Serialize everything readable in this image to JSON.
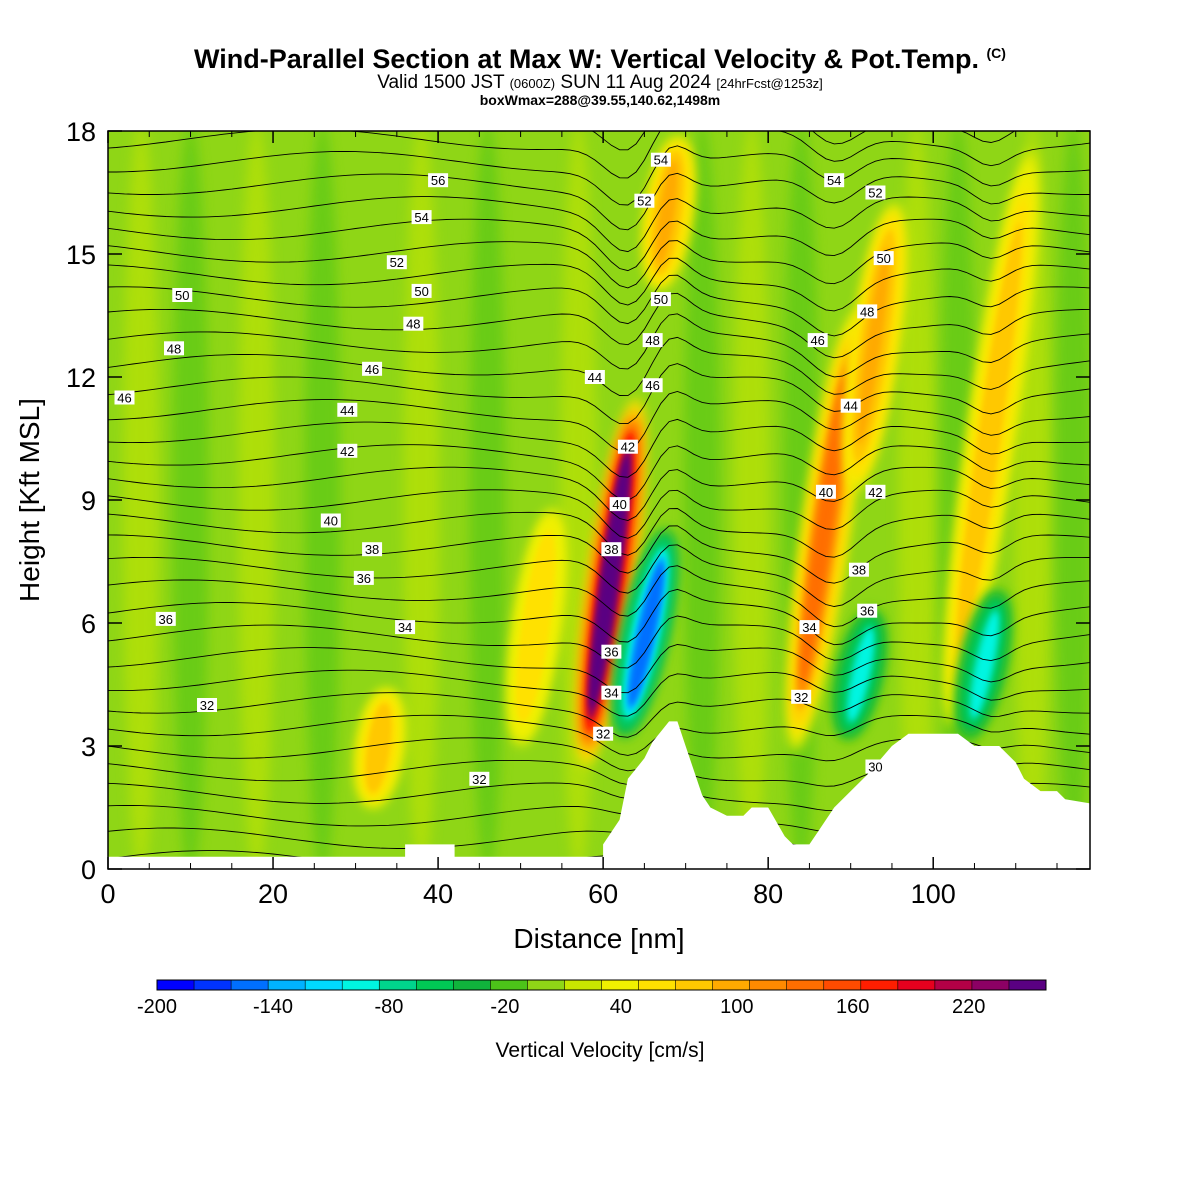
{
  "header": {
    "title_main": "Wind-Parallel Section at Max W: Vertical Velocity & Pot.Temp.",
    "title_mark": "(C)",
    "valid_a": "Valid 1500 JST",
    "valid_b": "(0600Z)",
    "valid_c": "SUN 11 Aug 2024",
    "valid_d": "[24hrFcst@1253z]",
    "boxwmax": "boxWmax=288@39.55,140.62,1498m"
  },
  "chart_data": {
    "type": "heatmap",
    "xlabel": "Distance [nm]",
    "ylabel": "Height [Kft MSL]",
    "xlim": [
      0,
      119
    ],
    "ylim": [
      0,
      18
    ],
    "x_ticks": [
      0,
      20,
      40,
      60,
      80,
      100
    ],
    "y_ticks": [
      0,
      3,
      6,
      9,
      12,
      15,
      18
    ],
    "colorbar": {
      "label": "Vertical Velocity [cm/s]",
      "tick_labels": [
        "-200",
        "-140",
        "-80",
        "-20",
        "40",
        "100",
        "160",
        "220"
      ],
      "tick_values": [
        -200,
        -140,
        -80,
        -20,
        40,
        100,
        160,
        220
      ],
      "range": [
        -200,
        260
      ],
      "colors": [
        "#0000ff",
        "#0033ff",
        "#0070ff",
        "#00b2ff",
        "#00d9ff",
        "#00f5e1",
        "#00d48c",
        "#00c855",
        "#10b43c",
        "#4cc419",
        "#8fd616",
        "#c8e600",
        "#f0f000",
        "#ffe100",
        "#ffc800",
        "#ffaa00",
        "#ff8a00",
        "#ff6e00",
        "#ff4b00",
        "#ff1e00",
        "#e6001e",
        "#b40046",
        "#8c0064",
        "#5a0082"
      ]
    },
    "updraft_bands": [
      {
        "x_center": 61,
        "z_bottom": 2.2,
        "z_top": 11.8,
        "peak_w": 260
      },
      {
        "x_center": 52,
        "z_bottom": 2.8,
        "z_top": 9.0,
        "peak_w": 60
      },
      {
        "x_center": 33,
        "z_bottom": 1.4,
        "z_top": 4.5,
        "peak_w": 80
      },
      {
        "x_center": 87,
        "z_bottom": 2.5,
        "z_top": 14.0,
        "peak_w": 140
      },
      {
        "x_center": 93,
        "z_bottom": 9.0,
        "z_top": 16.5,
        "peak_w": 90
      },
      {
        "x_center": 107,
        "z_bottom": 3.0,
        "z_top": 18.0,
        "peak_w": 80
      },
      {
        "x_center": 68,
        "z_bottom": 14.0,
        "z_top": 18.0,
        "peak_w": 90
      }
    ],
    "downdraft_bands": [
      {
        "x_center": 65,
        "z_bottom": 3.0,
        "z_top": 8.5,
        "peak_w": -150
      },
      {
        "x_center": 91,
        "z_bottom": 3.0,
        "z_top": 6.5,
        "peak_w": -90
      },
      {
        "x_center": 106,
        "z_bottom": 3.0,
        "z_top": 7.0,
        "peak_w": -90
      }
    ],
    "terrain_kft": [
      [
        0,
        0.3
      ],
      [
        36,
        0.3
      ],
      [
        36,
        0.6
      ],
      [
        42,
        0.6
      ],
      [
        42,
        0.3
      ],
      [
        60,
        0.3
      ],
      [
        60,
        0.6
      ],
      [
        62,
        1.2
      ],
      [
        63,
        2.2
      ],
      [
        65,
        2.7
      ],
      [
        66,
        3.1
      ],
      [
        68,
        3.6
      ],
      [
        69,
        3.6
      ],
      [
        70,
        3.0
      ],
      [
        71,
        2.4
      ],
      [
        72,
        1.8
      ],
      [
        73,
        1.5
      ],
      [
        75,
        1.3
      ],
      [
        77,
        1.3
      ],
      [
        78,
        1.5
      ],
      [
        80,
        1.5
      ],
      [
        82,
        0.8
      ],
      [
        83,
        0.6
      ],
      [
        85,
        0.6
      ],
      [
        86,
        0.9
      ],
      [
        88,
        1.5
      ],
      [
        90,
        1.9
      ],
      [
        92,
        2.3
      ],
      [
        95,
        3.0
      ],
      [
        97,
        3.3
      ],
      [
        103,
        3.3
      ],
      [
        105,
        3.0
      ],
      [
        108,
        3.0
      ],
      [
        110,
        2.6
      ],
      [
        111,
        2.2
      ],
      [
        113,
        1.9
      ],
      [
        115,
        1.9
      ],
      [
        116,
        1.7
      ],
      [
        119,
        1.6
      ]
    ],
    "theta_contour_labels": [
      {
        "text": "56",
        "x": 40,
        "z": 16.8
      },
      {
        "text": "54",
        "x": 38,
        "z": 15.9
      },
      {
        "text": "52",
        "x": 35,
        "z": 14.8
      },
      {
        "text": "50",
        "x": 9,
        "z": 14.0
      },
      {
        "text": "50",
        "x": 38,
        "z": 14.1
      },
      {
        "text": "48",
        "x": 37,
        "z": 13.3
      },
      {
        "text": "48",
        "x": 8,
        "z": 12.7
      },
      {
        "text": "46",
        "x": 32,
        "z": 12.2
      },
      {
        "text": "46",
        "x": 2,
        "z": 11.5
      },
      {
        "text": "44",
        "x": 29,
        "z": 11.2
      },
      {
        "text": "42",
        "x": 29,
        "z": 10.2
      },
      {
        "text": "40",
        "x": 27,
        "z": 8.5
      },
      {
        "text": "38",
        "x": 32,
        "z": 7.8
      },
      {
        "text": "36",
        "x": 31,
        "z": 7.1
      },
      {
        "text": "36",
        "x": 7,
        "z": 6.1
      },
      {
        "text": "34",
        "x": 36,
        "z": 5.9
      },
      {
        "text": "32",
        "x": 12,
        "z": 4.0
      },
      {
        "text": "32",
        "x": 45,
        "z": 2.2
      },
      {
        "text": "54",
        "x": 67,
        "z": 17.3
      },
      {
        "text": "52",
        "x": 65,
        "z": 16.3
      },
      {
        "text": "50",
        "x": 67,
        "z": 13.9
      },
      {
        "text": "48",
        "x": 66,
        "z": 12.9
      },
      {
        "text": "46",
        "x": 66,
        "z": 11.8
      },
      {
        "text": "44",
        "x": 59,
        "z": 12.0
      },
      {
        "text": "42",
        "x": 63,
        "z": 10.3
      },
      {
        "text": "40",
        "x": 62,
        "z": 8.9
      },
      {
        "text": "38",
        "x": 61,
        "z": 7.8
      },
      {
        "text": "36",
        "x": 61,
        "z": 5.3
      },
      {
        "text": "34",
        "x": 61,
        "z": 4.3
      },
      {
        "text": "32",
        "x": 60,
        "z": 3.3
      },
      {
        "text": "54",
        "x": 88,
        "z": 16.8
      },
      {
        "text": "52",
        "x": 93,
        "z": 16.5
      },
      {
        "text": "50",
        "x": 94,
        "z": 14.9
      },
      {
        "text": "48",
        "x": 92,
        "z": 13.6
      },
      {
        "text": "46",
        "x": 86,
        "z": 12.9
      },
      {
        "text": "44",
        "x": 90,
        "z": 11.3
      },
      {
        "text": "42",
        "x": 93,
        "z": 9.2
      },
      {
        "text": "40",
        "x": 87,
        "z": 9.2
      },
      {
        "text": "38",
        "x": 91,
        "z": 7.3
      },
      {
        "text": "36",
        "x": 92,
        "z": 6.3
      },
      {
        "text": "34",
        "x": 85,
        "z": 5.9
      },
      {
        "text": "32",
        "x": 84,
        "z": 4.2
      },
      {
        "text": "30",
        "x": 93,
        "z": 2.5
      }
    ]
  }
}
